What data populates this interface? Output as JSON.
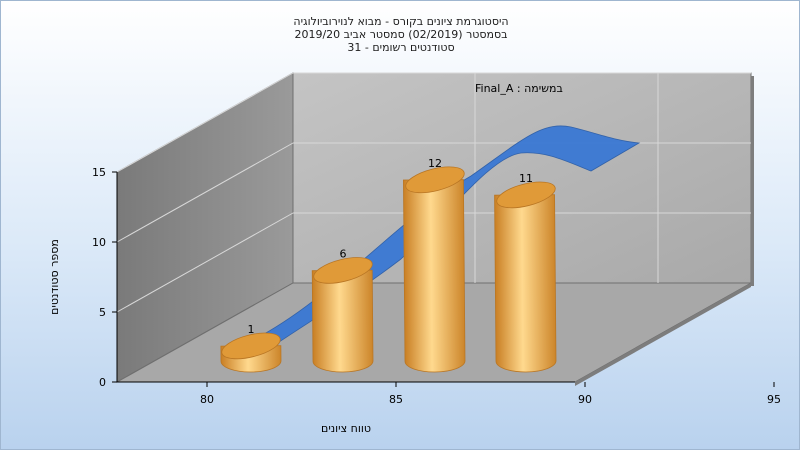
{
  "chart_data": {
    "type": "bar",
    "title": [
      "היסטוגרמת ציונים בקורס - מבוא לנוירוביולוגיה",
      "בסמסטר  (02/2019)  סמסטר אביב 2019/20",
      "סטודנטים רשומים - 31"
    ],
    "xlabel": "טווח ציונים",
    "ylabel": "מספר סטודנטים",
    "series_label": "במשימה : Final_A",
    "x_ticks": [
      "80",
      "85",
      "90",
      "95"
    ],
    "y_ticks": [
      "0",
      "5",
      "10",
      "15"
    ],
    "ylim": [
      0,
      15
    ],
    "bins": [
      "75-80",
      "80-85",
      "85-90",
      "90-95"
    ],
    "values": [
      1,
      6,
      12,
      11
    ],
    "data_labels": [
      "1",
      "6",
      "12",
      "11"
    ],
    "distribution_curve": true,
    "colors": {
      "bar": "#e5a03a",
      "curve": "#3a78d4",
      "wall": "#8c8c8c",
      "back_wall": "#b5b5b5",
      "floor": "#a8a8a8"
    }
  }
}
